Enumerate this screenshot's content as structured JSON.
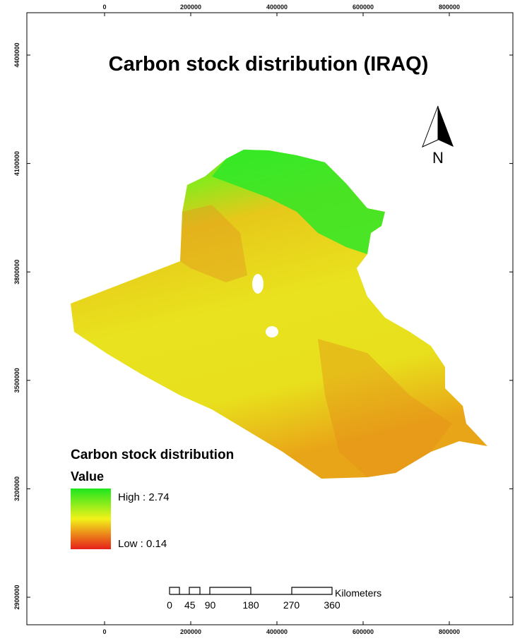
{
  "title": "Carbon stock distribution (IRAQ)",
  "north_arrow": "N",
  "axes": {
    "top": [
      0,
      200000,
      400000,
      600000,
      800000
    ],
    "bottom": [
      0,
      200000,
      400000,
      600000,
      800000
    ],
    "left": [
      4400000,
      4100000,
      3800000,
      3500000,
      3200000,
      2900000
    ]
  },
  "legend": {
    "title": "Carbon stock distribution",
    "subtitle": "Value",
    "high": "High : 2.74",
    "low": "Low : 0.14"
  },
  "scale_bar": {
    "labels": [
      0,
      45,
      90,
      180,
      270,
      360
    ],
    "unit": "Kilometers"
  }
}
